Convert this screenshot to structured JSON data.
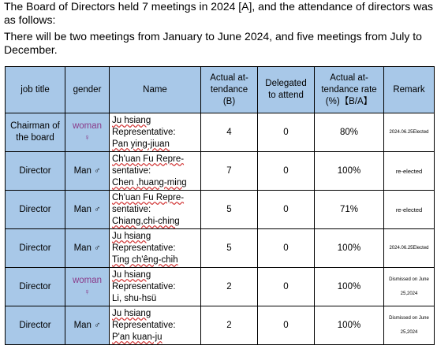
{
  "intro": {
    "line1": "The Board of Directors held 7 meetings in 2024 [A], and the attendance of directors was as follows:",
    "line2": "There will be two meetings from January to June 2024, and five meetings from July to December."
  },
  "table": {
    "headers": {
      "job_title": "job title",
      "gender": "gender",
      "name": "Name",
      "actual": "Actual at-tendance (B)",
      "delegated": "Delegated to attend",
      "rate": "Actual at-tendance rate (%)【B/A】",
      "remark": "Remark"
    },
    "rows": [
      {
        "job": "Chairman of the board",
        "gender": "woman",
        "gsym": "♀",
        "name1": "Ju hsiang",
        "name2": "Representative:",
        "name3": "Pan ying-jiuan",
        "actual": "4",
        "delegated": "0",
        "rate": "80%",
        "remark": "2024.06.25Elected"
      },
      {
        "job": "Director",
        "gender": "Man",
        "gsym": "♂",
        "name1": "Ch'uan Fu Repre-",
        "name2": "sentative:",
        "name3": "Chen ,huang-ming",
        "actual": "7",
        "delegated": "0",
        "rate": "100%",
        "remark": "re-elected"
      },
      {
        "job": "Director",
        "gender": "Man",
        "gsym": "♂",
        "name1": "Ch'uan Fu Repre-",
        "name2": "sentative:",
        "name3": "Chiang,chi-ching",
        "actual": "5",
        "delegated": "0",
        "rate": "71%",
        "remark": "re-elected"
      },
      {
        "job": "Director",
        "gender": "Man",
        "gsym": "♂",
        "name1": "Ju hsiang",
        "name2": "Representative:",
        "name3": "Ting ch'êng-chih",
        "actual": "5",
        "delegated": "0",
        "rate": "100%",
        "remark": "2024.06.25Elected"
      },
      {
        "job": "Director",
        "gender": "woman",
        "gsym": "♀",
        "name1": "Ju hsiang",
        "name2": "Representative:",
        "name3": "Li, shu-hsü",
        "actual": "2",
        "delegated": "0",
        "rate": "100%",
        "remark1": "Dismissed on June",
        "remark2": "25,2024"
      },
      {
        "job": "Director",
        "gender": "Man",
        "gsym": "♂",
        "name1": "Ju hsiang",
        "name2": "Representative:",
        "name3": "P'an kuan-ju",
        "actual": "2",
        "delegated": "0",
        "rate": "100%",
        "remark1": "Dismissed on June",
        "remark2": "25,2024"
      }
    ]
  }
}
